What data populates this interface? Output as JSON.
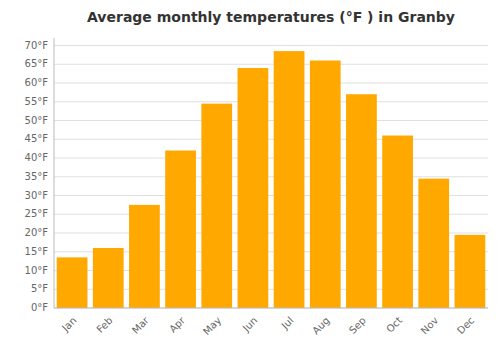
{
  "chart_data": {
    "type": "bar",
    "title": "Average monthly temperatures (°F ) in Granby",
    "categories": [
      "Jan",
      "Feb",
      "Mar",
      "Apr",
      "May",
      "Jun",
      "Jul",
      "Aug",
      "Sep",
      "Oct",
      "Nov",
      "Dec"
    ],
    "values": [
      13.5,
      16.0,
      27.5,
      42.0,
      54.5,
      64.0,
      68.5,
      66.0,
      57.0,
      46.0,
      34.5,
      19.5
    ],
    "color": "#FFA800",
    "ylim": [
      0,
      72
    ],
    "yticks": [
      {
        "value": 0,
        "label": "0°F"
      },
      {
        "value": 5,
        "label": "5°F"
      },
      {
        "value": 10,
        "label": "10°F"
      },
      {
        "value": 15,
        "label": "15°F"
      },
      {
        "value": 20,
        "label": "20°F"
      },
      {
        "value": 25,
        "label": "25°F"
      },
      {
        "value": 30,
        "label": "30°F"
      },
      {
        "value": 35,
        "label": "35°F"
      },
      {
        "value": 40,
        "label": "40°F"
      },
      {
        "value": 45,
        "label": "45°F"
      },
      {
        "value": 50,
        "label": "50°F"
      },
      {
        "value": 55,
        "label": "55°F"
      },
      {
        "value": 60,
        "label": "60°F"
      },
      {
        "value": 65,
        "label": "65°F"
      },
      {
        "value": 70,
        "label": "70°F"
      }
    ],
    "grid": true
  }
}
